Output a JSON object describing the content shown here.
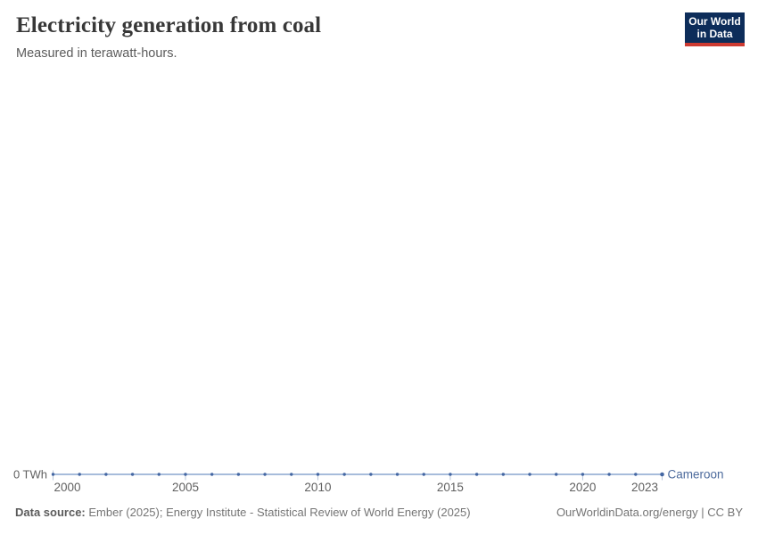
{
  "header": {
    "title": "Electricity generation from coal",
    "subtitle": "Measured in terawatt-hours.",
    "logo": {
      "line1": "Our World",
      "line2": "in Data",
      "bg_color": "#0d2d5a",
      "accent_color": "#cd3a31"
    }
  },
  "chart_data": {
    "type": "line",
    "title": "Electricity generation from coal",
    "ylabel": "terawatt-hours",
    "x": [
      2000,
      2001,
      2002,
      2003,
      2004,
      2005,
      2006,
      2007,
      2008,
      2009,
      2010,
      2011,
      2012,
      2013,
      2014,
      2015,
      2016,
      2017,
      2018,
      2019,
      2020,
      2021,
      2022,
      2023
    ],
    "series": [
      {
        "name": "Cameroon",
        "color": "#4c6a9c",
        "values": [
          0,
          0,
          0,
          0,
          0,
          0,
          0,
          0,
          0,
          0,
          0,
          0,
          0,
          0,
          0,
          0,
          0,
          0,
          0,
          0,
          0,
          0,
          0,
          0
        ]
      }
    ],
    "xlim": [
      2000,
      2023
    ],
    "ylim": [
      0,
      0
    ],
    "x_ticks": [
      2000,
      2005,
      2010,
      2015,
      2020,
      2023
    ],
    "x_tick_labels": [
      "2000",
      "2005",
      "2010",
      "2015",
      "2020",
      "2023"
    ],
    "y_ticks": [
      0
    ],
    "y_tick_label": "0 TWh",
    "grid": false,
    "legend_position": "end-of-line",
    "line_color": "#8aa6cf",
    "marker_color": "#4467a3",
    "tick_color": "#b9c6d8",
    "axis_label_color": "#606060"
  },
  "footer": {
    "data_source_label": "Data source:",
    "data_source_text": "Ember (2025); Energy Institute - Statistical Review of World Energy (2025)",
    "credit": "OurWorldinData.org/energy | CC BY"
  }
}
